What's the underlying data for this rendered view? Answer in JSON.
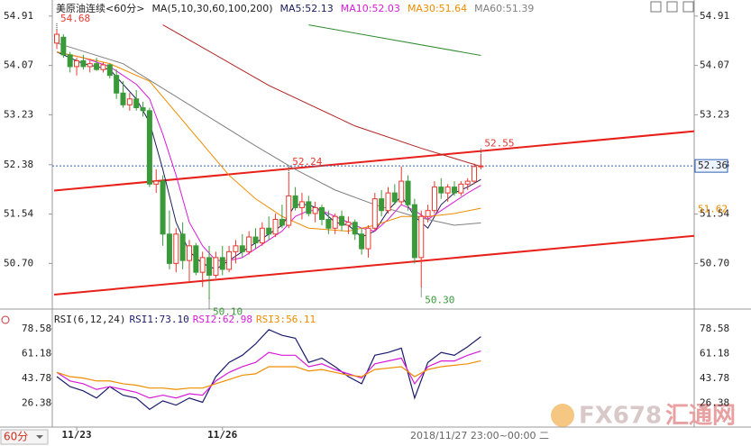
{
  "chart_data": [
    {
      "type": "candlestick",
      "title": "美原油连续<60分>",
      "indicator": "MA(5,10,30,60,100,200)",
      "xlim": [
        -0.68,
        96.19
      ],
      "ylim": [
        49.97,
        55.03
      ],
      "yticks": [
        54.91,
        54.07,
        53.23,
        52.38,
        51.54,
        {
          "value": 50.7,
          "label": "50.70"
        }
      ],
      "x_labels": [
        {
          "value": 3,
          "label": "11/23"
        },
        {
          "value": 25,
          "label": "11/26"
        }
      ],
      "up_color": "#e8382f",
      "down_color": "#3a9a3a",
      "candles": [
        [
          54.45,
          54.68,
          54.35,
          54.6
        ],
        [
          54.55,
          54.6,
          54.2,
          54.25
        ],
        [
          54.25,
          54.3,
          53.95,
          54.05
        ],
        [
          54.05,
          54.2,
          53.9,
          54.15
        ],
        [
          54.15,
          54.25,
          54.0,
          54.05
        ],
        [
          54.05,
          54.15,
          53.95,
          54.1
        ],
        [
          54.1,
          54.2,
          53.98,
          54.0
        ],
        [
          54.0,
          54.12,
          53.95,
          54.08
        ],
        [
          54.08,
          54.1,
          53.85,
          53.9
        ],
        [
          53.9,
          54.0,
          53.5,
          53.6
        ],
        [
          53.6,
          53.8,
          53.35,
          53.4
        ],
        [
          53.4,
          53.6,
          53.3,
          53.5
        ],
        [
          53.5,
          53.65,
          53.3,
          53.35
        ],
        [
          53.35,
          53.45,
          53.2,
          53.3
        ],
        [
          53.3,
          53.35,
          52.0,
          52.05
        ],
        [
          52.05,
          52.3,
          51.9,
          52.1
        ],
        [
          52.1,
          52.2,
          51.0,
          51.2
        ],
        [
          51.2,
          51.6,
          50.6,
          50.7
        ],
        [
          50.7,
          51.3,
          50.55,
          51.2
        ],
        [
          51.2,
          51.4,
          50.6,
          50.75
        ],
        [
          50.75,
          51.1,
          50.4,
          51.0
        ],
        [
          51.0,
          51.05,
          50.5,
          50.55
        ],
        [
          50.55,
          50.9,
          50.3,
          50.8
        ],
        [
          50.8,
          51.0,
          50.1,
          50.5
        ],
        [
          50.5,
          50.9,
          50.45,
          50.8
        ],
        [
          50.8,
          51.0,
          50.5,
          50.6
        ],
        [
          50.6,
          51.0,
          50.55,
          50.9
        ],
        [
          50.9,
          51.1,
          50.7,
          51.0
        ],
        [
          51.0,
          51.2,
          50.8,
          50.9
        ],
        [
          50.9,
          51.25,
          50.85,
          51.15
        ],
        [
          51.15,
          51.3,
          50.95,
          51.05
        ],
        [
          51.05,
          51.4,
          51.0,
          51.3
        ],
        [
          51.3,
          51.5,
          51.1,
          51.2
        ],
        [
          51.2,
          51.55,
          51.15,
          51.45
        ],
        [
          51.45,
          51.7,
          51.3,
          51.35
        ],
        [
          51.35,
          52.24,
          51.3,
          51.85
        ],
        [
          51.85,
          52.0,
          51.6,
          51.65
        ],
        [
          51.65,
          51.9,
          51.45,
          51.75
        ],
        [
          51.75,
          51.85,
          51.5,
          51.55
        ],
        [
          51.55,
          51.75,
          51.4,
          51.65
        ],
        [
          51.65,
          51.7,
          51.35,
          51.45
        ],
        [
          51.45,
          51.6,
          51.2,
          51.3
        ],
        [
          51.3,
          51.55,
          51.2,
          51.5
        ],
        [
          51.5,
          51.6,
          51.25,
          51.35
        ],
        [
          51.35,
          51.5,
          51.2,
          51.4
        ],
        [
          51.4,
          51.45,
          51.1,
          51.2
        ],
        [
          51.2,
          51.3,
          50.85,
          50.95
        ],
        [
          50.95,
          51.35,
          50.8,
          51.3
        ],
        [
          51.3,
          51.9,
          51.25,
          51.8
        ],
        [
          51.8,
          51.95,
          51.5,
          51.6
        ],
        [
          51.6,
          52.0,
          51.55,
          51.9
        ],
        [
          51.9,
          52.05,
          51.7,
          51.75
        ],
        [
          51.75,
          52.35,
          51.7,
          52.1
        ],
        [
          52.1,
          52.2,
          51.6,
          51.7
        ],
        [
          51.7,
          51.8,
          50.7,
          50.8
        ],
        [
          50.8,
          51.6,
          50.3,
          51.5
        ],
        [
          51.5,
          51.7,
          51.4,
          51.6
        ],
        [
          51.6,
          52.1,
          51.55,
          52.0
        ],
        [
          52.0,
          52.15,
          51.8,
          51.9
        ],
        [
          51.9,
          52.05,
          51.75,
          52.0
        ],
        [
          52.0,
          52.1,
          51.85,
          51.9
        ],
        [
          51.9,
          52.1,
          51.85,
          52.05
        ],
        [
          52.05,
          52.15,
          51.95,
          52.1
        ],
        [
          52.1,
          52.4,
          52.05,
          52.35
        ],
        [
          52.35,
          52.55,
          52.3,
          52.36
        ]
      ],
      "series": [
        {
          "name": "MA5:52.13",
          "color": "#1c1c5c",
          "x": [
            0,
            4,
            8,
            12,
            14,
            16,
            18,
            20,
            22,
            24,
            26,
            28,
            30,
            32,
            34,
            36,
            38,
            40,
            42,
            44,
            46,
            48,
            50,
            52,
            54,
            56,
            58,
            60,
            62,
            64
          ],
          "values": [
            54.3,
            54.1,
            54.0,
            53.5,
            53.1,
            52.3,
            51.4,
            50.9,
            50.7,
            50.6,
            50.75,
            50.9,
            51.05,
            51.2,
            51.35,
            51.7,
            51.7,
            51.6,
            51.4,
            51.35,
            51.15,
            51.25,
            51.6,
            51.85,
            51.5,
            51.3,
            51.7,
            51.9,
            52.0,
            52.13
          ]
        },
        {
          "name": "MA10:52.03",
          "color": "#d81bd8",
          "x": [
            0,
            4,
            8,
            12,
            14,
            16,
            18,
            20,
            22,
            24,
            26,
            28,
            30,
            32,
            34,
            36,
            38,
            40,
            42,
            44,
            46,
            48,
            50,
            52,
            54,
            56,
            58,
            60,
            62,
            64
          ],
          "values": [
            54.3,
            54.2,
            54.05,
            53.75,
            53.5,
            52.9,
            52.2,
            51.4,
            51.0,
            50.75,
            50.75,
            50.8,
            50.95,
            51.1,
            51.25,
            51.5,
            51.6,
            51.6,
            51.5,
            51.4,
            51.3,
            51.25,
            51.45,
            51.7,
            51.6,
            51.45,
            51.6,
            51.75,
            51.9,
            52.03
          ]
        },
        {
          "name": "MA30:51.64",
          "color": "#f08c00",
          "x": [
            0,
            8,
            14,
            20,
            26,
            30,
            34,
            38,
            44,
            48,
            52,
            56,
            60,
            64
          ],
          "values": [
            54.3,
            54.1,
            53.8,
            53.0,
            52.2,
            51.8,
            51.5,
            51.3,
            51.25,
            51.35,
            51.5,
            51.5,
            51.55,
            51.64
          ]
        },
        {
          "name": "MA60:51.39",
          "color": "#808080",
          "x": [
            0,
            10,
            20,
            30,
            36,
            42,
            48,
            54,
            60,
            64
          ],
          "values": [
            54.45,
            54.1,
            53.4,
            52.7,
            52.3,
            51.95,
            51.7,
            51.5,
            51.35,
            51.39
          ]
        },
        {
          "color": "#b22222",
          "x": [
            16,
            32,
            45,
            55,
            64
          ],
          "values": [
            54.76,
            53.73,
            53.04,
            52.66,
            52.35
          ]
        },
        {
          "color": "#2e8b2e",
          "x": [
            38,
            64
          ],
          "values": [
            54.76,
            54.24
          ]
        }
      ],
      "trendlines": [
        {
          "color": "#e8201a",
          "x": [
            -0.4,
            96.2
          ],
          "values": [
            51.94,
            52.95
          ]
        },
        {
          "color": "#e8201a",
          "x": [
            -0.4,
            96.2
          ],
          "values": [
            50.17,
            51.17
          ]
        }
      ],
      "last_price": {
        "value": 52.36,
        "label": "52.36"
      },
      "ma_tag": {
        "value": 51.62,
        "label": "51.62"
      },
      "annotations": [
        {
          "index": 0,
          "value": 54.68,
          "label": "54.68"
        },
        {
          "index": 35,
          "value": 52.24,
          "label": "52.24"
        },
        {
          "index": 64,
          "value": 52.55,
          "label": "52.55"
        },
        {
          "index": 23,
          "value": 50.1,
          "label": "50.10"
        },
        {
          "index": 55,
          "value": 50.3,
          "label": "50.30"
        }
      ]
    },
    {
      "type": "line",
      "title": "RSI(6,12,24)",
      "xlim": [
        -0.68,
        96.19
      ],
      "ylim": [
        10.86,
        91.2
      ],
      "yticks": [
        78.58,
        61.18,
        43.78,
        26.38
      ],
      "series": [
        {
          "name": "RSI1:73.10",
          "color": "#1c1c6e",
          "x": [
            0,
            2,
            4,
            6,
            8,
            10,
            12,
            14,
            16,
            18,
            20,
            22,
            24,
            26,
            28,
            30,
            32,
            34,
            36,
            38,
            40,
            42,
            44,
            46,
            48,
            50,
            52,
            54,
            56,
            58,
            60,
            62,
            64
          ],
          "values": [
            45,
            38,
            35,
            30,
            38,
            32,
            30,
            22,
            28,
            25,
            30,
            27,
            45,
            55,
            60,
            68,
            78,
            74,
            72,
            55,
            58,
            52,
            45,
            40,
            60,
            62,
            65,
            30,
            55,
            62,
            60,
            66,
            73.1
          ]
        },
        {
          "name": "RSI2:62.98",
          "color": "#d81bd8",
          "x": [
            0,
            2,
            4,
            6,
            8,
            10,
            12,
            14,
            16,
            18,
            20,
            22,
            24,
            26,
            28,
            30,
            32,
            34,
            36,
            38,
            40,
            42,
            44,
            46,
            48,
            50,
            52,
            54,
            56,
            58,
            60,
            62,
            64
          ],
          "values": [
            48,
            42,
            40,
            36,
            38,
            36,
            34,
            30,
            32,
            30,
            33,
            32,
            42,
            48,
            52,
            55,
            62,
            60,
            60,
            52,
            54,
            50,
            47,
            44,
            54,
            56,
            58,
            40,
            52,
            56,
            56,
            60,
            62.98
          ]
        },
        {
          "name": "RSI3:56.11",
          "color": "#f08c00",
          "x": [
            0,
            2,
            4,
            6,
            8,
            10,
            12,
            14,
            16,
            18,
            20,
            22,
            24,
            26,
            28,
            30,
            32,
            34,
            36,
            38,
            40,
            42,
            44,
            46,
            48,
            50,
            52,
            54,
            56,
            58,
            60,
            62,
            64
          ],
          "values": [
            48,
            45,
            44,
            42,
            42,
            40,
            39,
            37,
            37,
            36,
            37,
            37,
            40,
            43,
            46,
            47,
            52,
            52,
            52,
            49,
            50,
            48,
            46,
            45,
            50,
            51,
            52,
            45,
            50,
            52,
            53,
            54,
            56.11
          ]
        }
      ]
    }
  ],
  "footer": {
    "period": "60分",
    "time": "2018/11/27 23:00~00:00 二",
    "watermark_brand": "FX678",
    "watermark_name": "汇通网"
  }
}
